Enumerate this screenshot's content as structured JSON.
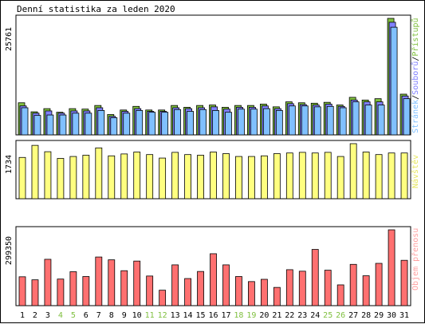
{
  "title": "Denní statistika za leden 2020",
  "colors": {
    "pages": "#80c0ff",
    "files": "#8080ff",
    "hits": "#80c040",
    "visits": "#ffff80",
    "kbytes": "#ff7070",
    "weekend_label": "#80c040"
  },
  "chart_data": [
    {
      "type": "bar",
      "name": "hits_files_pages",
      "max_label": "25761",
      "ymax": 25761,
      "legend": {
        "pages": "Stránek",
        "files": "Souborů",
        "hits": "Přístupů",
        "sep": "/"
      },
      "categories": [
        "1",
        "2",
        "3",
        "4",
        "5",
        "6",
        "7",
        "8",
        "9",
        "10",
        "11",
        "12",
        "13",
        "14",
        "15",
        "16",
        "17",
        "18",
        "19",
        "20",
        "21",
        "22",
        "23",
        "24",
        "25",
        "26",
        "27",
        "28",
        "29",
        "30",
        "31"
      ],
      "series": [
        {
          "name": "Přístupů",
          "values": [
            7100,
            5100,
            5800,
            5000,
            5800,
            5700,
            6500,
            4500,
            5500,
            6300,
            5500,
            5500,
            6500,
            6100,
            6500,
            6600,
            6100,
            6500,
            6500,
            6800,
            6200,
            7300,
            7100,
            7000,
            7200,
            6600,
            8300,
            7700,
            8000,
            25761,
            9000
          ]
        },
        {
          "name": "Souborů",
          "values": [
            6400,
            4800,
            5300,
            4800,
            5300,
            5300,
            6000,
            4100,
            5200,
            5800,
            5200,
            5200,
            6000,
            5800,
            6000,
            6200,
            5700,
            6100,
            6100,
            6400,
            5800,
            6900,
            6700,
            6600,
            6800,
            6300,
            7700,
            7300,
            7300,
            24900,
            8600
          ]
        },
        {
          "name": "Stránek",
          "values": [
            6000,
            4300,
            4400,
            4400,
            4800,
            4800,
            5400,
            3800,
            4800,
            5400,
            5000,
            5000,
            5600,
            5200,
            5600,
            5400,
            5000,
            5700,
            5700,
            5800,
            5400,
            6400,
            6400,
            6200,
            6300,
            6000,
            7300,
            6600,
            6600,
            23800,
            8000
          ]
        }
      ]
    },
    {
      "type": "bar",
      "name": "visits",
      "max_label": "1734",
      "ymax": 1734,
      "legend": "Návštěv",
      "series": [
        {
          "name": "Návštěv",
          "values": [
            1300,
            1680,
            1480,
            1270,
            1330,
            1370,
            1600,
            1350,
            1410,
            1470,
            1390,
            1280,
            1460,
            1390,
            1370,
            1470,
            1420,
            1330,
            1330,
            1350,
            1420,
            1440,
            1460,
            1440,
            1460,
            1330,
            1734,
            1470,
            1390,
            1440,
            1440
          ]
        }
      ]
    },
    {
      "type": "bar",
      "name": "kbytes",
      "max_label": "299350",
      "ymax": 299350,
      "legend": "Objem přenosu",
      "series": [
        {
          "name": "Objem přenosu",
          "values": [
            114000,
            102000,
            183000,
            105000,
            134000,
            115000,
            192000,
            181000,
            138000,
            176000,
            117000,
            61000,
            161000,
            107000,
            135000,
            205000,
            161000,
            115000,
            95000,
            104000,
            72000,
            142000,
            136000,
            222000,
            140000,
            82000,
            163000,
            118000,
            167000,
            299350,
            179000
          ]
        }
      ]
    }
  ],
  "weekend_days": [
    "4",
    "5",
    "11",
    "12",
    "18",
    "19",
    "25",
    "26"
  ]
}
